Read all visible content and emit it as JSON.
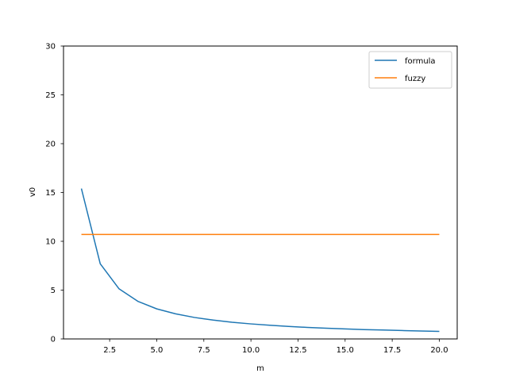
{
  "chart_data": {
    "type": "line",
    "title": "",
    "xlabel": "m",
    "ylabel": "v0",
    "xlim": [
      0.05,
      20.95
    ],
    "ylim": [
      0,
      30
    ],
    "xticks": [
      2.5,
      5.0,
      7.5,
      10.0,
      12.5,
      15.0,
      17.5,
      20.0
    ],
    "xtick_labels": [
      "2.5",
      "5.0",
      "7.5",
      "10.0",
      "12.5",
      "15.0",
      "17.5",
      "20.0"
    ],
    "yticks": [
      0,
      5,
      10,
      15,
      20,
      25,
      30
    ],
    "ytick_labels": [
      "0",
      "5",
      "10",
      "15",
      "20",
      "25",
      "30"
    ],
    "grid": false,
    "legend_position": "top-right",
    "series": [
      {
        "name": "formula",
        "color": "#1f77b4",
        "x": [
          1,
          2,
          3,
          4,
          5,
          6,
          7,
          8,
          9,
          10,
          11,
          12,
          13,
          14,
          15,
          16,
          17,
          18,
          19,
          20
        ],
        "y": [
          15.4,
          7.7,
          5.13,
          3.85,
          3.08,
          2.57,
          2.2,
          1.93,
          1.71,
          1.54,
          1.4,
          1.28,
          1.18,
          1.1,
          1.03,
          0.96,
          0.91,
          0.86,
          0.81,
          0.77
        ]
      },
      {
        "name": "fuzzy",
        "color": "#ff7f0e",
        "x": [
          1,
          20
        ],
        "y": [
          10.7,
          10.7
        ]
      }
    ]
  }
}
